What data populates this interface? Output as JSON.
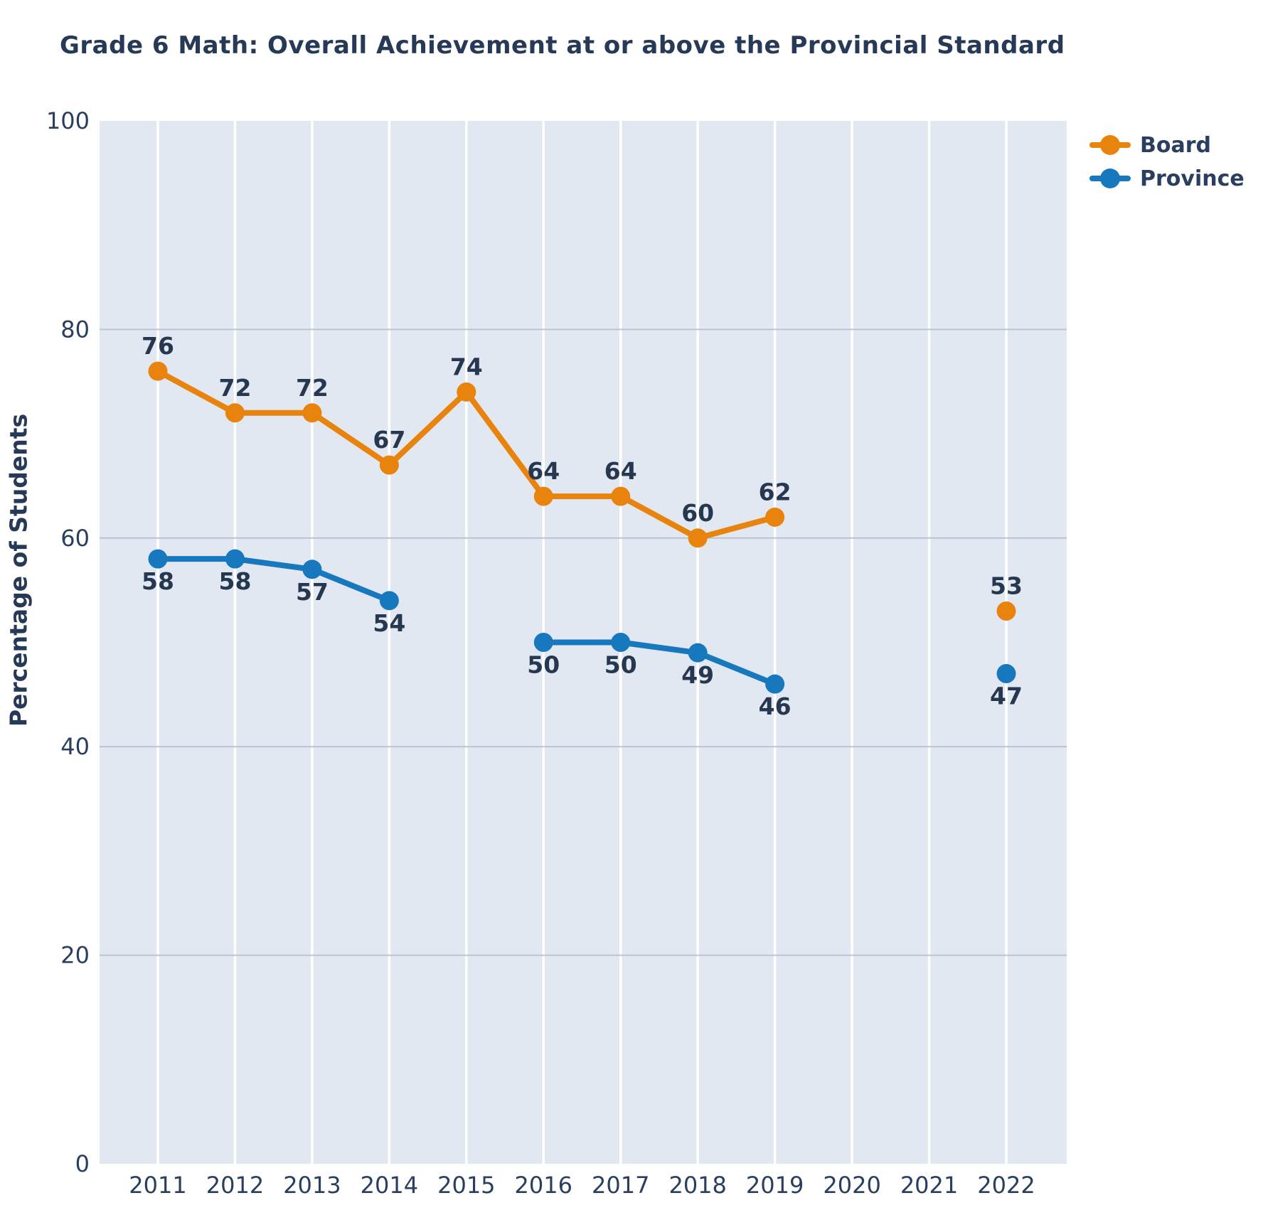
{
  "title": "Grade 6 Math: Overall Achievement at or above the Provincial Standard",
  "colors": {
    "background": "#ffffff",
    "plot_background": "#e2e8f2",
    "grid_horizontal": "#bcc4d0",
    "grid_vertical": "#ffffff",
    "tick_text": "#2a3f5f",
    "data_label_text": "#263750",
    "board": "#e8830d",
    "province": "#1878be"
  },
  "chart_data": {
    "type": "line",
    "title": "Grade 6 Math: Overall Achievement at or above the Provincial Standard",
    "xlabel": "",
    "ylabel": "Percentage of Students",
    "categories": [
      "2011",
      "2012",
      "2013",
      "2014",
      "2015",
      "2016",
      "2017",
      "2018",
      "2019",
      "2020",
      "2021",
      "2022"
    ],
    "series": [
      {
        "name": "Board",
        "color": "#e8830d",
        "label_position": "above",
        "values": [
          76,
          72,
          72,
          67,
          74,
          64,
          64,
          60,
          62,
          null,
          null,
          53
        ]
      },
      {
        "name": "Province",
        "color": "#1878be",
        "label_position": "below",
        "values": [
          58,
          58,
          57,
          54,
          null,
          50,
          50,
          49,
          46,
          null,
          null,
          47
        ]
      }
    ],
    "ylim": [
      0,
      100
    ],
    "yticks": [
      0,
      20,
      40,
      60,
      80,
      100
    ],
    "grid": true,
    "legend_position": "top-right"
  }
}
